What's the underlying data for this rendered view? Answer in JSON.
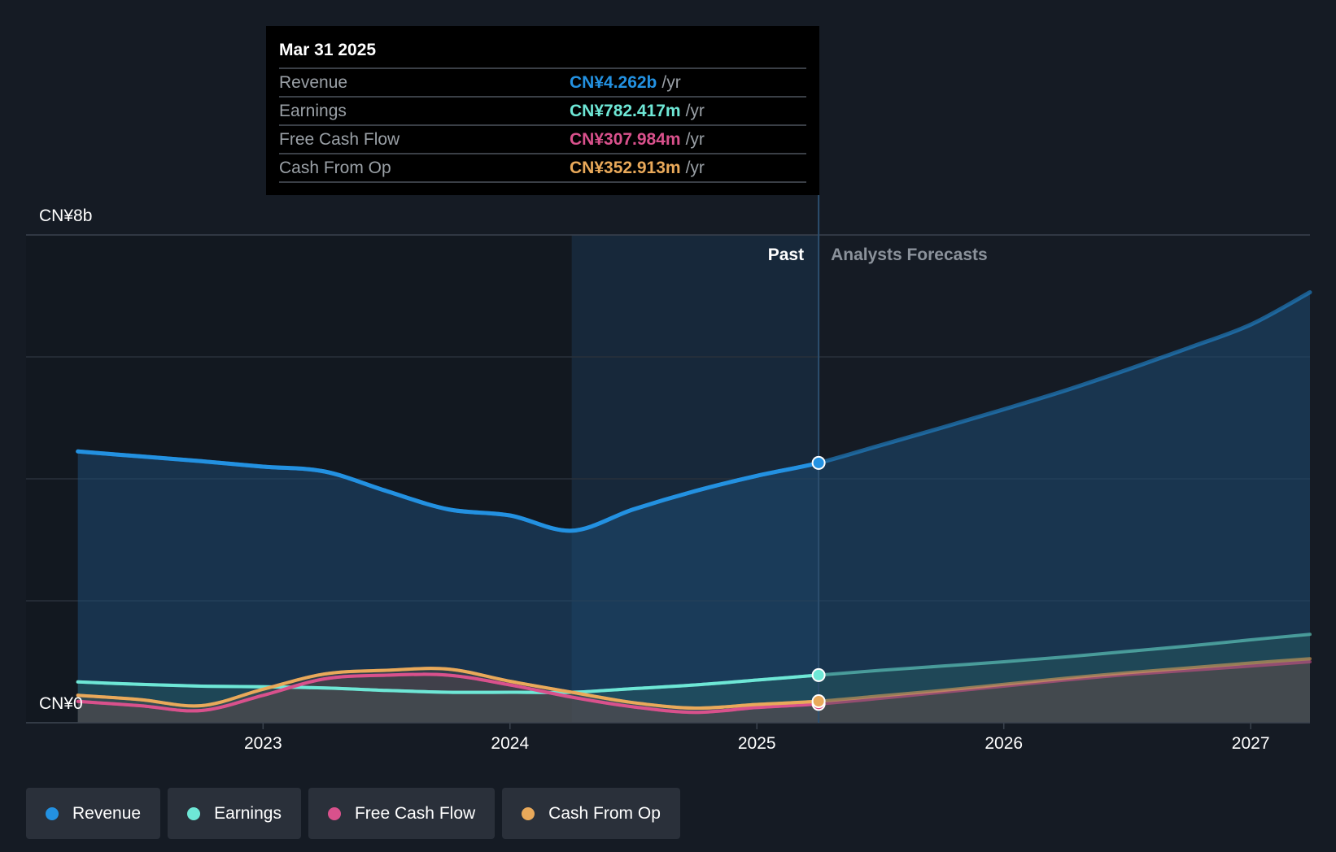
{
  "chart_data": {
    "type": "area",
    "currency_prefix": "CN¥",
    "y_axis_labels": [
      "CN¥8b",
      "CN¥0"
    ],
    "ylim": [
      0,
      8
    ],
    "xlim": [
      2022.04,
      2027.24
    ],
    "x_ticks": [
      "2023",
      "2024",
      "2025",
      "2026",
      "2027"
    ],
    "past_label": "Past",
    "forecast_label": "Analysts Forecasts",
    "divider_x": 2025.25,
    "highlight_start_x": 2024.25,
    "tooltip": {
      "date": "Mar 31 2025",
      "rows": [
        {
          "label": "Revenue",
          "value": "CN¥4.262b",
          "unit": "/yr",
          "color": "#2391e1"
        },
        {
          "label": "Earnings",
          "value": "CN¥782.417m",
          "unit": "/yr",
          "color": "#6ee7d6"
        },
        {
          "label": "Free Cash Flow",
          "value": "CN¥307.984m",
          "unit": "/yr",
          "color": "#d9518c"
        },
        {
          "label": "Cash From Op",
          "value": "CN¥352.913m",
          "unit": "/yr",
          "color": "#e9a95a"
        }
      ]
    },
    "series": [
      {
        "name": "Revenue",
        "color": "#2391e1",
        "x": [
          2022.25,
          2022.5,
          2022.75,
          2023.0,
          2023.25,
          2023.5,
          2023.75,
          2024.0,
          2024.25,
          2024.5,
          2024.75,
          2025.0,
          2025.25,
          2025.5,
          2025.75,
          2026.0,
          2026.25,
          2026.5,
          2026.75,
          2027.0,
          2027.24
        ],
        "values": [
          4.45,
          4.37,
          4.29,
          4.2,
          4.12,
          3.8,
          3.5,
          3.4,
          3.15,
          3.5,
          3.8,
          4.05,
          4.262,
          4.55,
          4.84,
          5.14,
          5.45,
          5.79,
          6.15,
          6.53,
          7.06
        ]
      },
      {
        "name": "Earnings",
        "color": "#6ee7d6",
        "x": [
          2022.25,
          2022.5,
          2022.75,
          2023.0,
          2023.25,
          2023.5,
          2023.75,
          2024.0,
          2024.25,
          2024.5,
          2024.75,
          2025.0,
          2025.25,
          2025.5,
          2025.75,
          2026.0,
          2026.25,
          2026.5,
          2026.75,
          2027.0,
          2027.24
        ],
        "values": [
          0.67,
          0.63,
          0.6,
          0.59,
          0.57,
          0.53,
          0.5,
          0.5,
          0.5,
          0.56,
          0.62,
          0.7,
          0.782,
          0.86,
          0.93,
          1.0,
          1.08,
          1.17,
          1.26,
          1.36,
          1.45
        ]
      },
      {
        "name": "Free Cash Flow",
        "color": "#d9518c",
        "x": [
          2022.25,
          2022.5,
          2022.75,
          2023.0,
          2023.25,
          2023.5,
          2023.75,
          2024.0,
          2024.25,
          2024.5,
          2024.75,
          2025.0,
          2025.25,
          2025.5,
          2025.75,
          2026.0,
          2026.25,
          2026.5,
          2026.75,
          2027.0,
          2027.24
        ],
        "values": [
          0.35,
          0.28,
          0.2,
          0.45,
          0.72,
          0.78,
          0.78,
          0.62,
          0.42,
          0.26,
          0.17,
          0.25,
          0.308,
          0.4,
          0.5,
          0.6,
          0.7,
          0.79,
          0.86,
          0.93,
          1.0
        ]
      },
      {
        "name": "Cash From Op",
        "color": "#e9a95a",
        "x": [
          2022.25,
          2022.5,
          2022.75,
          2023.0,
          2023.25,
          2023.5,
          2023.75,
          2024.0,
          2024.25,
          2024.5,
          2024.75,
          2025.0,
          2025.25,
          2025.5,
          2025.75,
          2026.0,
          2026.25,
          2026.5,
          2026.75,
          2027.0,
          2027.24
        ],
        "values": [
          0.45,
          0.38,
          0.28,
          0.55,
          0.8,
          0.86,
          0.88,
          0.68,
          0.5,
          0.33,
          0.24,
          0.3,
          0.353,
          0.44,
          0.53,
          0.63,
          0.73,
          0.82,
          0.9,
          0.98,
          1.05
        ]
      }
    ]
  },
  "legend": [
    {
      "label": "Revenue",
      "color": "#2391e1"
    },
    {
      "label": "Earnings",
      "color": "#6ee7d6"
    },
    {
      "label": "Free Cash Flow",
      "color": "#d9518c"
    },
    {
      "label": "Cash From Op",
      "color": "#e9a95a"
    }
  ]
}
